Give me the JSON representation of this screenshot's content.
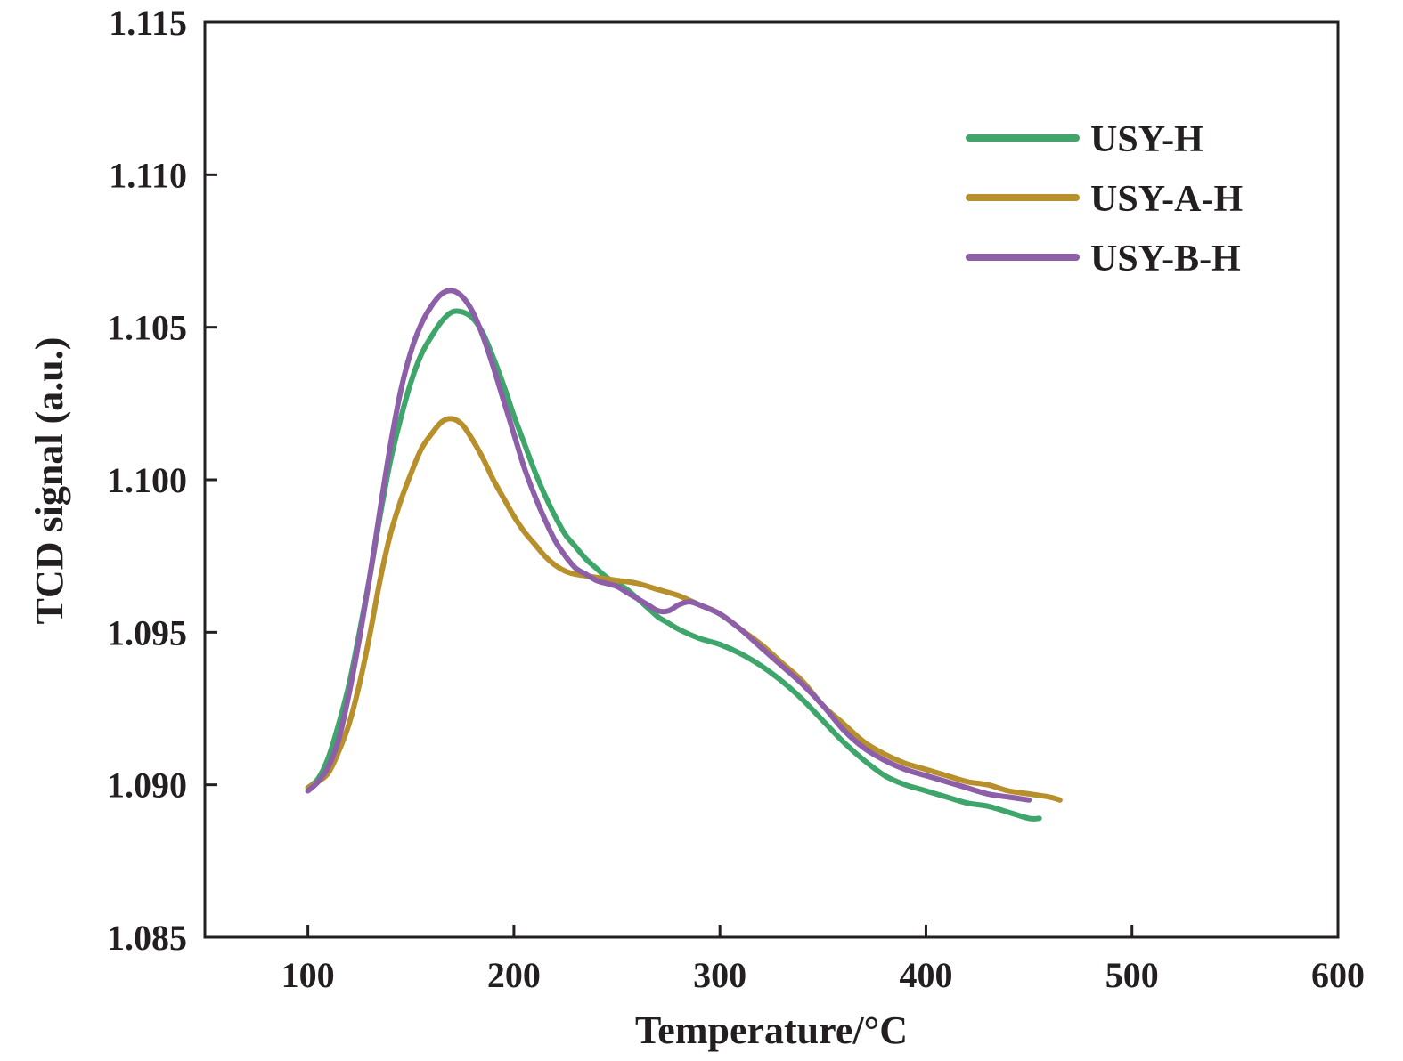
{
  "chart_data": {
    "type": "line",
    "title": "",
    "xlabel": "Temperature/°C",
    "ylabel": "TCD signal (a.u.)",
    "xlim": [
      50,
      600
    ],
    "ylim": [
      1.085,
      1.115
    ],
    "xticks": [
      "100",
      "200",
      "300",
      "400",
      "500",
      "600"
    ],
    "yticks": [
      "1.085",
      "1.090",
      "1.095",
      "1.100",
      "1.105",
      "1.110",
      "1.115"
    ],
    "grid": false,
    "legend_position": "top-right",
    "series": [
      {
        "name": "USY-H",
        "color": "#3ea66a",
        "points": [
          [
            100,
            1.0899
          ],
          [
            105,
            1.0902
          ],
          [
            110,
            1.0909
          ],
          [
            115,
            1.092
          ],
          [
            120,
            1.0933
          ],
          [
            125,
            1.095
          ],
          [
            130,
            1.0968
          ],
          [
            135,
            1.0988
          ],
          [
            140,
            1.1006
          ],
          [
            145,
            1.102
          ],
          [
            150,
            1.1032
          ],
          [
            155,
            1.1041
          ],
          [
            160,
            1.1047
          ],
          [
            165,
            1.1052
          ],
          [
            170,
            1.1055
          ],
          [
            175,
            1.1055
          ],
          [
            180,
            1.1053
          ],
          [
            185,
            1.1048
          ],
          [
            190,
            1.104
          ],
          [
            195,
            1.1031
          ],
          [
            200,
            1.1021
          ],
          [
            205,
            1.1012
          ],
          [
            210,
            1.1003
          ],
          [
            215,
            1.0995
          ],
          [
            220,
            1.0988
          ],
          [
            225,
            1.0982
          ],
          [
            230,
            1.0978
          ],
          [
            235,
            1.0974
          ],
          [
            240,
            1.0971
          ],
          [
            245,
            1.0968
          ],
          [
            250,
            1.0966
          ],
          [
            255,
            1.0964
          ],
          [
            260,
            1.0961
          ],
          [
            265,
            1.0958
          ],
          [
            270,
            1.0955
          ],
          [
            275,
            1.0953
          ],
          [
            280,
            1.0951
          ],
          [
            290,
            1.0948
          ],
          [
            300,
            1.0946
          ],
          [
            310,
            1.0943
          ],
          [
            320,
            1.0939
          ],
          [
            330,
            1.0934
          ],
          [
            340,
            1.0928
          ],
          [
            350,
            1.0921
          ],
          [
            360,
            1.0914
          ],
          [
            370,
            1.0908
          ],
          [
            380,
            1.0903
          ],
          [
            390,
            1.09
          ],
          [
            400,
            1.0898
          ],
          [
            410,
            1.0896
          ],
          [
            420,
            1.0894
          ],
          [
            430,
            1.0893
          ],
          [
            440,
            1.0891
          ],
          [
            450,
            1.0889
          ],
          [
            455,
            1.0889
          ]
        ]
      },
      {
        "name": "USY-A-H",
        "color": "#b8902b",
        "points": [
          [
            100,
            1.0899
          ],
          [
            105,
            1.0901
          ],
          [
            110,
            1.0904
          ],
          [
            115,
            1.0911
          ],
          [
            120,
            1.092
          ],
          [
            125,
            1.0933
          ],
          [
            130,
            1.0949
          ],
          [
            135,
            1.0967
          ],
          [
            140,
            1.0982
          ],
          [
            145,
            1.0993
          ],
          [
            150,
            1.1002
          ],
          [
            155,
            1.101
          ],
          [
            160,
            1.1015
          ],
          [
            165,
            1.1019
          ],
          [
            170,
            1.102
          ],
          [
            175,
            1.1018
          ],
          [
            180,
            1.1013
          ],
          [
            185,
            1.1007
          ],
          [
            190,
            1.1
          ],
          [
            195,
            1.0994
          ],
          [
            200,
            1.0988
          ],
          [
            205,
            1.0983
          ],
          [
            210,
            1.0979
          ],
          [
            215,
            1.0975
          ],
          [
            220,
            1.0972
          ],
          [
            225,
            1.097
          ],
          [
            230,
            1.0969
          ],
          [
            240,
            1.0968
          ],
          [
            250,
            1.0967
          ],
          [
            260,
            1.0966
          ],
          [
            270,
            1.0964
          ],
          [
            280,
            1.0962
          ],
          [
            290,
            1.0959
          ],
          [
            300,
            1.0956
          ],
          [
            310,
            1.0951
          ],
          [
            320,
            1.0946
          ],
          [
            330,
            1.094
          ],
          [
            340,
            1.0934
          ],
          [
            350,
            1.0926
          ],
          [
            360,
            1.092
          ],
          [
            370,
            1.0914
          ],
          [
            380,
            1.091
          ],
          [
            390,
            1.0907
          ],
          [
            400,
            1.0905
          ],
          [
            410,
            1.0903
          ],
          [
            420,
            1.0901
          ],
          [
            430,
            1.09
          ],
          [
            440,
            1.0898
          ],
          [
            450,
            1.0897
          ],
          [
            460,
            1.0896
          ],
          [
            465,
            1.0895
          ]
        ]
      },
      {
        "name": "USY-B-H",
        "color": "#8c5fa8",
        "points": [
          [
            100,
            1.0898
          ],
          [
            105,
            1.0901
          ],
          [
            110,
            1.0906
          ],
          [
            115,
            1.0915
          ],
          [
            120,
            1.093
          ],
          [
            125,
            1.0948
          ],
          [
            130,
            1.0968
          ],
          [
            135,
            1.099
          ],
          [
            140,
            1.1011
          ],
          [
            145,
            1.1029
          ],
          [
            150,
            1.1042
          ],
          [
            155,
            1.1051
          ],
          [
            160,
            1.1057
          ],
          [
            165,
            1.1061
          ],
          [
            170,
            1.1062
          ],
          [
            175,
            1.106
          ],
          [
            180,
            1.1055
          ],
          [
            185,
            1.1047
          ],
          [
            190,
            1.1037
          ],
          [
            195,
            1.1026
          ],
          [
            200,
            1.1015
          ],
          [
            205,
            1.1004
          ],
          [
            210,
            1.0995
          ],
          [
            215,
            1.0987
          ],
          [
            220,
            1.098
          ],
          [
            225,
            1.0975
          ],
          [
            230,
            1.0971
          ],
          [
            235,
            1.0969
          ],
          [
            240,
            1.0967
          ],
          [
            245,
            1.0966
          ],
          [
            250,
            1.0965
          ],
          [
            255,
            1.0963
          ],
          [
            260,
            1.0961
          ],
          [
            265,
            1.0959
          ],
          [
            270,
            1.0957
          ],
          [
            275,
            1.0957
          ],
          [
            280,
            1.0959
          ],
          [
            285,
            1.096
          ],
          [
            290,
            1.0959
          ],
          [
            300,
            1.0956
          ],
          [
            310,
            1.0951
          ],
          [
            320,
            1.0945
          ],
          [
            330,
            1.0939
          ],
          [
            340,
            1.0933
          ],
          [
            350,
            1.0926
          ],
          [
            360,
            1.0918
          ],
          [
            370,
            1.0912
          ],
          [
            380,
            1.0908
          ],
          [
            390,
            1.0905
          ],
          [
            400,
            1.0903
          ],
          [
            410,
            1.0901
          ],
          [
            420,
            1.0899
          ],
          [
            430,
            1.0897
          ],
          [
            440,
            1.0896
          ],
          [
            450,
            1.0895
          ]
        ]
      }
    ]
  }
}
